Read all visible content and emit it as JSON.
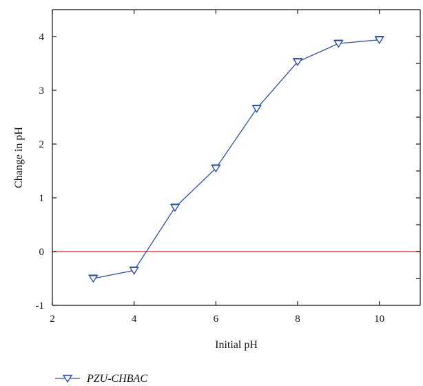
{
  "chart_data": {
    "type": "line",
    "title": "",
    "xlabel": "Initial pH",
    "ylabel": "Change in pH",
    "xlim": [
      2,
      11
    ],
    "ylim": [
      -1,
      4.5
    ],
    "xticks": [
      2,
      4,
      6,
      8,
      10
    ],
    "yticks": [
      -1,
      0,
      1,
      2,
      3,
      4
    ],
    "x_tick_labels": [
      "2",
      "4",
      "6",
      "8",
      "10"
    ],
    "y_tick_labels": [
      "-1",
      "0",
      "1",
      "2",
      "3",
      "4"
    ],
    "grid": false,
    "legend_position": "bottom-left",
    "reference_line": {
      "y": 0,
      "color": "#e0454a"
    },
    "series": [
      {
        "name": "PZU-CHBAC",
        "color": "#2e4f9e",
        "marker": "down-triangle",
        "x": [
          3,
          4,
          5,
          6,
          7,
          8,
          9,
          10
        ],
        "y": [
          -0.5,
          -0.35,
          0.82,
          1.55,
          2.66,
          3.53,
          3.87,
          3.94
        ]
      }
    ]
  }
}
